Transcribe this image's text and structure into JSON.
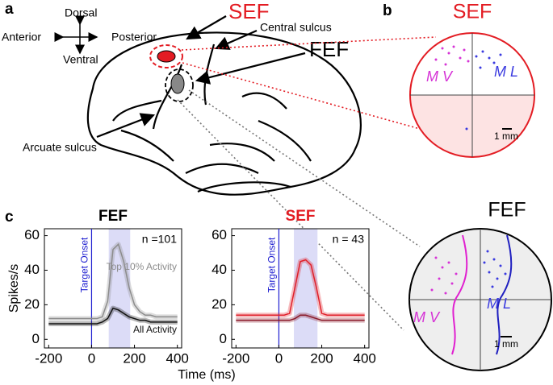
{
  "figure": {
    "panel_a": "a",
    "panel_b": "b",
    "panel_c": "c",
    "dorsal": "Dorsal",
    "anterior": "Anterior",
    "posterior": "Posterior",
    "ventral": "Ventral",
    "sef_label": "SEF",
    "central_sulcus": "Central sulcus",
    "fef_label": "FEF",
    "arcuate_sulcus": "Arcuate sulcus",
    "inset_sef": {
      "title": "SEF",
      "mv": "M V",
      "ml": "M L",
      "scale": "1 mm"
    },
    "inset_fef": {
      "title": "FEF",
      "mv": "M V",
      "ml": "M L",
      "scale": "1 mm"
    }
  },
  "chart_data": [
    {
      "type": "line",
      "title": "FEF",
      "n_label": "n =101",
      "event_x": 0,
      "event_label": "Target Onset",
      "highlight": [
        80,
        180
      ],
      "ylabel": "Spikes/s",
      "xlabel": "Time (ms)",
      "x": [
        -200,
        -175,
        -150,
        -125,
        -100,
        -75,
        -50,
        -25,
        0,
        25,
        50,
        75,
        100,
        125,
        150,
        175,
        200,
        225,
        250,
        275,
        300,
        325,
        350,
        375,
        400
      ],
      "series": [
        {
          "name": "Top 10% Activity",
          "color": "#8c8c8c",
          "values": [
            12,
            12,
            12,
            12,
            12,
            12,
            12,
            12,
            12,
            12,
            13,
            22,
            52,
            55,
            45,
            30,
            20,
            16,
            14,
            14,
            13,
            13,
            13,
            13,
            13
          ]
        },
        {
          "name": "All Activity",
          "color": "#111111",
          "values": [
            9,
            9,
            9,
            9,
            9,
            9,
            9,
            9,
            9,
            9,
            10,
            12,
            18,
            17,
            15,
            13,
            12,
            11,
            11,
            10,
            10,
            10,
            10,
            10,
            10
          ]
        }
      ],
      "xlim": [
        -220,
        420
      ],
      "ylim": [
        -5,
        64
      ],
      "xticks": [
        -200,
        0,
        200,
        400
      ],
      "yticks": [
        0,
        20,
        40,
        60
      ]
    },
    {
      "type": "line",
      "title": "SEF",
      "n_label": "n = 43",
      "event_x": 0,
      "event_label": "Target Onset",
      "highlight": [
        70,
        180
      ],
      "x": [
        -200,
        -175,
        -150,
        -125,
        -100,
        -75,
        -50,
        -25,
        0,
        25,
        50,
        75,
        100,
        125,
        150,
        175,
        200,
        225,
        250,
        275,
        300,
        325,
        350,
        375,
        400
      ],
      "series": [
        {
          "color": "#e0202a",
          "values": [
            14,
            14,
            14,
            14,
            14,
            14,
            14,
            14,
            14,
            14,
            15,
            30,
            45,
            46,
            43,
            30,
            15,
            14,
            14,
            14,
            14,
            14,
            14,
            14,
            14
          ]
        },
        {
          "color": "#8a1a2a",
          "values": [
            11,
            11,
            11,
            11,
            11,
            11,
            11,
            11,
            11,
            11,
            11,
            12,
            14,
            14,
            13,
            12,
            11,
            11,
            11,
            11,
            11,
            11,
            11,
            11,
            11
          ]
        }
      ],
      "xlim": [
        -220,
        420
      ],
      "ylim": [
        -5,
        64
      ],
      "xticks": [
        -200,
        0,
        200,
        400
      ],
      "yticks": [
        0,
        20,
        40,
        60
      ]
    }
  ]
}
